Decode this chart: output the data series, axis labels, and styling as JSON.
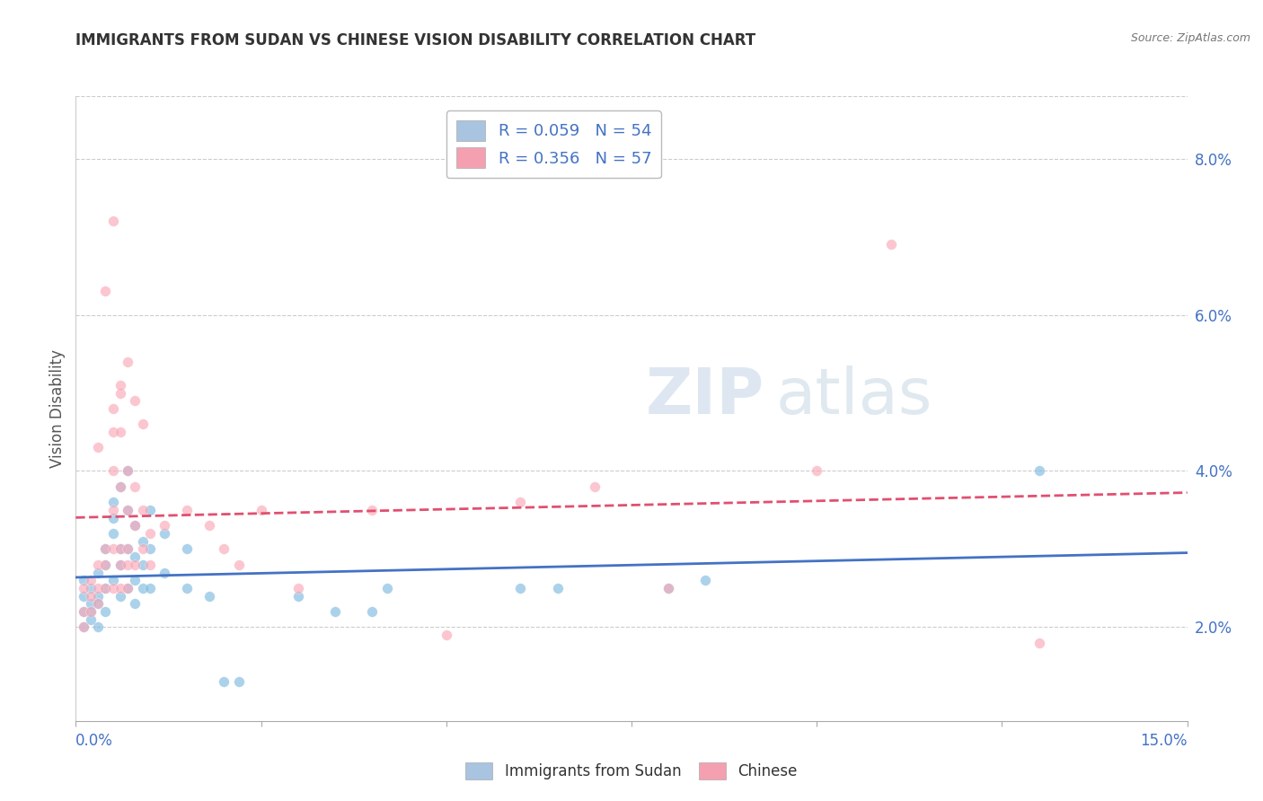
{
  "title": "IMMIGRANTS FROM SUDAN VS CHINESE VISION DISABILITY CORRELATION CHART",
  "source": "Source: ZipAtlas.com",
  "ylabel": "Vision Disability",
  "xlim": [
    0.0,
    0.15
  ],
  "ylim": [
    0.008,
    0.088
  ],
  "ytick_vals": [
    0.02,
    0.04,
    0.06,
    0.08
  ],
  "ytick_labels": [
    "2.0%",
    "4.0%",
    "6.0%",
    "8.0%"
  ],
  "sudan_color": "#7fbbdf",
  "chinese_color": "#f9a8b8",
  "sudan_line_color": "#4472c4",
  "chinese_line_color": "#e05070",
  "sudan_points": [
    [
      0.001,
      0.024
    ],
    [
      0.001,
      0.022
    ],
    [
      0.001,
      0.02
    ],
    [
      0.001,
      0.026
    ],
    [
      0.002,
      0.025
    ],
    [
      0.002,
      0.023
    ],
    [
      0.002,
      0.022
    ],
    [
      0.002,
      0.021
    ],
    [
      0.003,
      0.027
    ],
    [
      0.003,
      0.024
    ],
    [
      0.003,
      0.023
    ],
    [
      0.003,
      0.02
    ],
    [
      0.004,
      0.03
    ],
    [
      0.004,
      0.028
    ],
    [
      0.004,
      0.025
    ],
    [
      0.004,
      0.022
    ],
    [
      0.005,
      0.036
    ],
    [
      0.005,
      0.034
    ],
    [
      0.005,
      0.032
    ],
    [
      0.005,
      0.026
    ],
    [
      0.006,
      0.038
    ],
    [
      0.006,
      0.03
    ],
    [
      0.006,
      0.028
    ],
    [
      0.006,
      0.024
    ],
    [
      0.007,
      0.04
    ],
    [
      0.007,
      0.035
    ],
    [
      0.007,
      0.03
    ],
    [
      0.007,
      0.025
    ],
    [
      0.008,
      0.033
    ],
    [
      0.008,
      0.029
    ],
    [
      0.008,
      0.026
    ],
    [
      0.008,
      0.023
    ],
    [
      0.009,
      0.031
    ],
    [
      0.009,
      0.028
    ],
    [
      0.009,
      0.025
    ],
    [
      0.01,
      0.035
    ],
    [
      0.01,
      0.03
    ],
    [
      0.01,
      0.025
    ],
    [
      0.012,
      0.032
    ],
    [
      0.012,
      0.027
    ],
    [
      0.015,
      0.03
    ],
    [
      0.015,
      0.025
    ],
    [
      0.018,
      0.024
    ],
    [
      0.02,
      0.013
    ],
    [
      0.022,
      0.013
    ],
    [
      0.03,
      0.024
    ],
    [
      0.035,
      0.022
    ],
    [
      0.04,
      0.022
    ],
    [
      0.042,
      0.025
    ],
    [
      0.06,
      0.025
    ],
    [
      0.065,
      0.025
    ],
    [
      0.08,
      0.025
    ],
    [
      0.085,
      0.026
    ],
    [
      0.13,
      0.04
    ]
  ],
  "chinese_points": [
    [
      0.001,
      0.025
    ],
    [
      0.001,
      0.022
    ],
    [
      0.001,
      0.02
    ],
    [
      0.002,
      0.026
    ],
    [
      0.002,
      0.024
    ],
    [
      0.002,
      0.022
    ],
    [
      0.003,
      0.028
    ],
    [
      0.003,
      0.025
    ],
    [
      0.003,
      0.023
    ],
    [
      0.004,
      0.03
    ],
    [
      0.004,
      0.028
    ],
    [
      0.004,
      0.025
    ],
    [
      0.005,
      0.048
    ],
    [
      0.005,
      0.045
    ],
    [
      0.005,
      0.04
    ],
    [
      0.005,
      0.035
    ],
    [
      0.005,
      0.03
    ],
    [
      0.005,
      0.025
    ],
    [
      0.006,
      0.05
    ],
    [
      0.006,
      0.045
    ],
    [
      0.006,
      0.038
    ],
    [
      0.006,
      0.03
    ],
    [
      0.006,
      0.028
    ],
    [
      0.006,
      0.025
    ],
    [
      0.007,
      0.04
    ],
    [
      0.007,
      0.035
    ],
    [
      0.007,
      0.03
    ],
    [
      0.007,
      0.028
    ],
    [
      0.007,
      0.025
    ],
    [
      0.008,
      0.038
    ],
    [
      0.008,
      0.033
    ],
    [
      0.008,
      0.028
    ],
    [
      0.009,
      0.035
    ],
    [
      0.009,
      0.03
    ],
    [
      0.01,
      0.032
    ],
    [
      0.01,
      0.028
    ],
    [
      0.012,
      0.033
    ],
    [
      0.015,
      0.035
    ],
    [
      0.018,
      0.033
    ],
    [
      0.02,
      0.03
    ],
    [
      0.022,
      0.028
    ],
    [
      0.025,
      0.035
    ],
    [
      0.03,
      0.025
    ],
    [
      0.04,
      0.035
    ],
    [
      0.05,
      0.019
    ],
    [
      0.06,
      0.036
    ],
    [
      0.07,
      0.038
    ],
    [
      0.08,
      0.025
    ],
    [
      0.1,
      0.04
    ],
    [
      0.11,
      0.069
    ],
    [
      0.13,
      0.018
    ],
    [
      0.005,
      0.072
    ],
    [
      0.004,
      0.063
    ],
    [
      0.007,
      0.054
    ],
    [
      0.006,
      0.051
    ],
    [
      0.008,
      0.049
    ],
    [
      0.009,
      0.046
    ],
    [
      0.003,
      0.043
    ]
  ]
}
